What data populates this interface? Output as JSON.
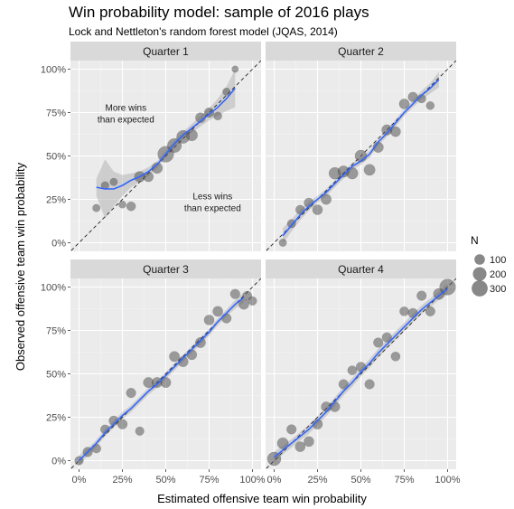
{
  "chart_data": {
    "type": "scatter",
    "title": "Win probability model: sample of 2016 plays",
    "subtitle": "Lock and Nettleton's random forest model (JQAS, 2014)",
    "xlabel": "Estimated offensive team win probability",
    "ylabel": "Observed offensive team win probability",
    "xlim": [
      0,
      1
    ],
    "ylim": [
      0,
      1
    ],
    "x_ticks": [
      0,
      0.25,
      0.5,
      0.75,
      1
    ],
    "x_tick_labels": [
      "0%",
      "25%",
      "50%",
      "75%",
      "100%"
    ],
    "y_ticks": [
      0,
      0.25,
      0.5,
      0.75,
      1
    ],
    "y_tick_labels": [
      "0%",
      "25%",
      "50%",
      "75%",
      "100%"
    ],
    "grid": true,
    "reference_line": "y = x (dashed)",
    "legend": {
      "title": "N",
      "placement": "right",
      "entries": [
        {
          "label": "100",
          "n": 100
        },
        {
          "label": "200",
          "n": 200
        },
        {
          "label": "300",
          "n": 300
        }
      ]
    },
    "panels": [
      {
        "label": "Quarter 1",
        "annotations": [
          {
            "text": [
              "More wins",
              "than expected"
            ],
            "x": 0.27,
            "y": 0.76
          },
          {
            "text": [
              "Less wins",
              "than expected"
            ],
            "x": 0.77,
            "y": 0.25
          }
        ],
        "points": [
          [
            0.1,
            0.2,
            40
          ],
          [
            0.15,
            0.33,
            45
          ],
          [
            0.2,
            0.35,
            40
          ],
          [
            0.25,
            0.22,
            35
          ],
          [
            0.3,
            0.21,
            70
          ],
          [
            0.35,
            0.38,
            110
          ],
          [
            0.4,
            0.38,
            90
          ],
          [
            0.45,
            0.43,
            110
          ],
          [
            0.5,
            0.51,
            300
          ],
          [
            0.55,
            0.56,
            220
          ],
          [
            0.6,
            0.61,
            180
          ],
          [
            0.65,
            0.62,
            130
          ],
          [
            0.7,
            0.72,
            90
          ],
          [
            0.75,
            0.75,
            80
          ],
          [
            0.8,
            0.73,
            50
          ],
          [
            0.85,
            0.87,
            40
          ],
          [
            0.9,
            1.0,
            25
          ]
        ],
        "smooth": [
          [
            0.1,
            0.32
          ],
          [
            0.15,
            0.31
          ],
          [
            0.2,
            0.31
          ],
          [
            0.25,
            0.33
          ],
          [
            0.3,
            0.36
          ],
          [
            0.35,
            0.38
          ],
          [
            0.4,
            0.41
          ],
          [
            0.45,
            0.45
          ],
          [
            0.5,
            0.51
          ],
          [
            0.55,
            0.57
          ],
          [
            0.6,
            0.62
          ],
          [
            0.65,
            0.66
          ],
          [
            0.7,
            0.7
          ],
          [
            0.75,
            0.74
          ],
          [
            0.8,
            0.78
          ],
          [
            0.85,
            0.83
          ],
          [
            0.9,
            0.89
          ]
        ],
        "band": [
          0.05,
          0.17,
          0.1,
          0.06,
          0.04,
          0.03,
          0.025,
          0.02,
          0.02,
          0.02,
          0.02,
          0.025,
          0.03,
          0.035,
          0.05,
          0.07,
          0.11
        ]
      },
      {
        "label": "Quarter 2",
        "annotations": [],
        "points": [
          [
            0.05,
            0.0,
            40
          ],
          [
            0.1,
            0.11,
            55
          ],
          [
            0.15,
            0.19,
            70
          ],
          [
            0.2,
            0.23,
            80
          ],
          [
            0.25,
            0.19,
            90
          ],
          [
            0.3,
            0.25,
            95
          ],
          [
            0.35,
            0.4,
            140
          ],
          [
            0.4,
            0.41,
            130
          ],
          [
            0.45,
            0.4,
            130
          ],
          [
            0.5,
            0.5,
            140
          ],
          [
            0.55,
            0.42,
            120
          ],
          [
            0.6,
            0.55,
            100
          ],
          [
            0.65,
            0.65,
            100
          ],
          [
            0.7,
            0.64,
            90
          ],
          [
            0.75,
            0.8,
            90
          ],
          [
            0.8,
            0.84,
            80
          ],
          [
            0.85,
            0.83,
            60
          ],
          [
            0.9,
            0.79,
            50
          ]
        ],
        "smooth": [
          [
            0.05,
            0.04
          ],
          [
            0.1,
            0.1
          ],
          [
            0.15,
            0.16
          ],
          [
            0.2,
            0.21
          ],
          [
            0.25,
            0.25
          ],
          [
            0.3,
            0.29
          ],
          [
            0.35,
            0.34
          ],
          [
            0.4,
            0.39
          ],
          [
            0.45,
            0.44
          ],
          [
            0.5,
            0.47
          ],
          [
            0.55,
            0.51
          ],
          [
            0.6,
            0.58
          ],
          [
            0.65,
            0.63
          ],
          [
            0.7,
            0.69
          ],
          [
            0.75,
            0.75
          ],
          [
            0.8,
            0.8
          ],
          [
            0.85,
            0.85
          ],
          [
            0.9,
            0.89
          ],
          [
            0.95,
            0.94
          ]
        ],
        "band": [
          0.045,
          0.035,
          0.03,
          0.025,
          0.02,
          0.02,
          0.02,
          0.02,
          0.02,
          0.02,
          0.02,
          0.02,
          0.02,
          0.02,
          0.02,
          0.02,
          0.025,
          0.03,
          0.045
        ]
      },
      {
        "label": "Quarter 3",
        "annotations": [],
        "points": [
          [
            0.0,
            0.0,
            60
          ],
          [
            0.05,
            0.05,
            80
          ],
          [
            0.1,
            0.07,
            70
          ],
          [
            0.15,
            0.18,
            70
          ],
          [
            0.2,
            0.23,
            80
          ],
          [
            0.25,
            0.21,
            85
          ],
          [
            0.3,
            0.39,
            80
          ],
          [
            0.35,
            0.17,
            60
          ],
          [
            0.4,
            0.45,
            95
          ],
          [
            0.45,
            0.45,
            95
          ],
          [
            0.5,
            0.45,
            95
          ],
          [
            0.55,
            0.6,
            95
          ],
          [
            0.6,
            0.57,
            95
          ],
          [
            0.65,
            0.61,
            90
          ],
          [
            0.7,
            0.68,
            95
          ],
          [
            0.75,
            0.81,
            90
          ],
          [
            0.8,
            0.86,
            90
          ],
          [
            0.85,
            0.82,
            80
          ],
          [
            0.9,
            0.96,
            80
          ],
          [
            0.95,
            0.9,
            90
          ],
          [
            0.97,
            0.95,
            70
          ],
          [
            1.0,
            0.92,
            60
          ]
        ],
        "smooth": [
          [
            0.0,
            0.0
          ],
          [
            0.05,
            0.05
          ],
          [
            0.1,
            0.1
          ],
          [
            0.15,
            0.16
          ],
          [
            0.2,
            0.21
          ],
          [
            0.25,
            0.26
          ],
          [
            0.3,
            0.3
          ],
          [
            0.35,
            0.35
          ],
          [
            0.4,
            0.4
          ],
          [
            0.45,
            0.44
          ],
          [
            0.5,
            0.49
          ],
          [
            0.55,
            0.54
          ],
          [
            0.6,
            0.59
          ],
          [
            0.65,
            0.64
          ],
          [
            0.7,
            0.69
          ],
          [
            0.75,
            0.74
          ],
          [
            0.8,
            0.8
          ],
          [
            0.85,
            0.85
          ],
          [
            0.9,
            0.9
          ],
          [
            0.95,
            0.94
          ]
        ],
        "band": [
          0.03,
          0.02,
          0.02,
          0.02,
          0.02,
          0.02,
          0.02,
          0.02,
          0.02,
          0.02,
          0.02,
          0.02,
          0.02,
          0.02,
          0.02,
          0.02,
          0.02,
          0.02,
          0.025,
          0.03
        ]
      },
      {
        "label": "Quarter 4",
        "annotations": [],
        "points": [
          [
            0.0,
            0.01,
            200
          ],
          [
            0.05,
            0.1,
            120
          ],
          [
            0.1,
            0.18,
            80
          ],
          [
            0.15,
            0.08,
            90
          ],
          [
            0.2,
            0.11,
            90
          ],
          [
            0.25,
            0.21,
            90
          ],
          [
            0.3,
            0.31,
            90
          ],
          [
            0.35,
            0.31,
            90
          ],
          [
            0.4,
            0.44,
            80
          ],
          [
            0.45,
            0.52,
            70
          ],
          [
            0.5,
            0.54,
            80
          ],
          [
            0.55,
            0.44,
            80
          ],
          [
            0.6,
            0.68,
            80
          ],
          [
            0.65,
            0.71,
            80
          ],
          [
            0.7,
            0.6,
            70
          ],
          [
            0.75,
            0.86,
            70
          ],
          [
            0.8,
            0.85,
            80
          ],
          [
            0.85,
            0.95,
            80
          ],
          [
            0.9,
            0.86,
            80
          ],
          [
            0.95,
            0.96,
            120
          ],
          [
            1.0,
            1.0,
            300
          ]
        ],
        "smooth": [
          [
            0.0,
            0.02
          ],
          [
            0.05,
            0.06
          ],
          [
            0.1,
            0.1
          ],
          [
            0.15,
            0.14
          ],
          [
            0.2,
            0.18
          ],
          [
            0.25,
            0.23
          ],
          [
            0.3,
            0.28
          ],
          [
            0.35,
            0.34
          ],
          [
            0.4,
            0.4
          ],
          [
            0.45,
            0.45
          ],
          [
            0.5,
            0.51
          ],
          [
            0.55,
            0.56
          ],
          [
            0.6,
            0.62
          ],
          [
            0.65,
            0.67
          ],
          [
            0.7,
            0.72
          ],
          [
            0.75,
            0.77
          ],
          [
            0.8,
            0.82
          ],
          [
            0.85,
            0.87
          ],
          [
            0.9,
            0.91
          ],
          [
            0.95,
            0.95
          ],
          [
            1.0,
            0.99
          ]
        ],
        "band": [
          0.03,
          0.025,
          0.025,
          0.025,
          0.025,
          0.025,
          0.025,
          0.025,
          0.025,
          0.025,
          0.025,
          0.025,
          0.025,
          0.025,
          0.025,
          0.025,
          0.025,
          0.025,
          0.025,
          0.025,
          0.03
        ]
      }
    ]
  }
}
